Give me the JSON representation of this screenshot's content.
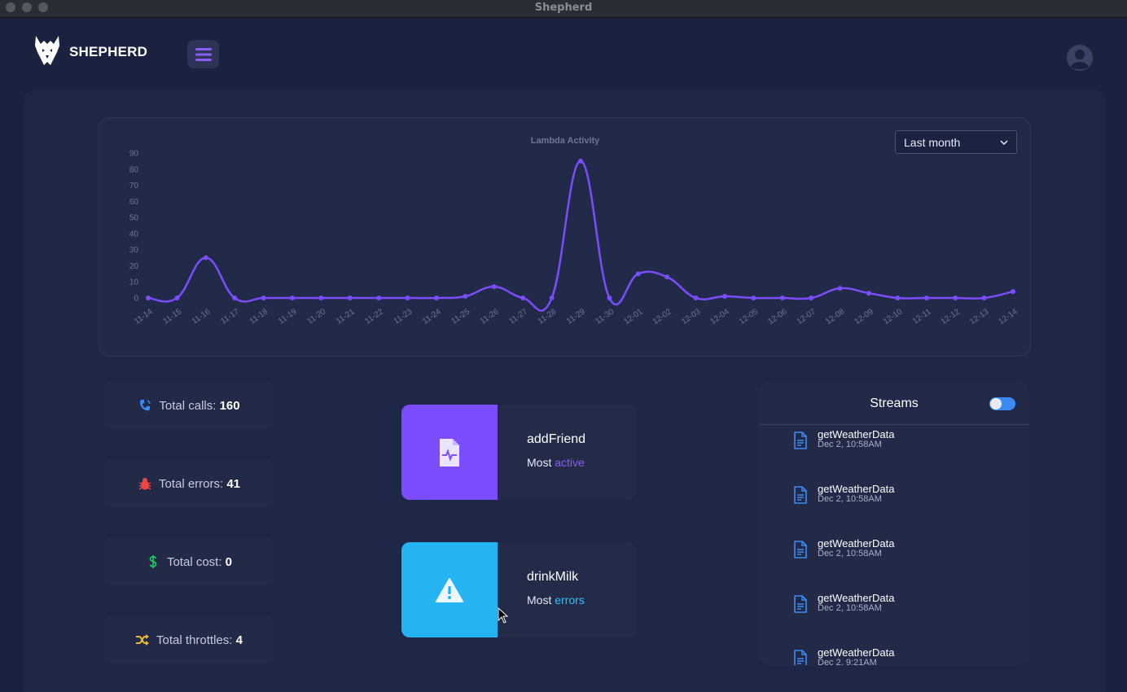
{
  "window": {
    "title": "Shepherd"
  },
  "header": {
    "brand": "SHEPHERD",
    "menu_icon": "hamburger-icon",
    "avatar_icon": "user-avatar-icon"
  },
  "chart_controls": {
    "range_selected": "Last month",
    "range_options": [
      "Last month"
    ]
  },
  "chart_data": {
    "type": "line",
    "title": "Lambda Activity",
    "xlabel": "",
    "ylabel": "",
    "ylim": [
      0,
      90
    ],
    "yticks": [
      0,
      10,
      20,
      30,
      40,
      50,
      60,
      70,
      80,
      90
    ],
    "grid": false,
    "color": "#7b4dff",
    "x": [
      "11-14",
      "11-15",
      "11-16",
      "11-17",
      "11-18",
      "11-19",
      "11-20",
      "11-21",
      "11-22",
      "11-23",
      "11-24",
      "11-25",
      "11-26",
      "11-27",
      "11-28",
      "11-29",
      "11-30",
      "12-01",
      "12-02",
      "12-03",
      "12-04",
      "12-05",
      "12-06",
      "12-07",
      "12-08",
      "12-09",
      "12-10",
      "12-11",
      "12-12",
      "12-13",
      "12-14"
    ],
    "series": [
      {
        "values": [
          0,
          0,
          25,
          0,
          0,
          0,
          0,
          0,
          0,
          0,
          0,
          1,
          7,
          0,
          0,
          85,
          0,
          15,
          13,
          0,
          1,
          0,
          0,
          0,
          6,
          3,
          0,
          0,
          0,
          0,
          4
        ]
      }
    ]
  },
  "stats": [
    {
      "label": "Total calls: ",
      "value": "160",
      "icon": "phone-icon",
      "color": "#3d8bf2"
    },
    {
      "label": "Total errors: ",
      "value": "41",
      "icon": "bug-icon",
      "color": "#ef4444"
    },
    {
      "label": "Total cost: ",
      "value": "0",
      "icon": "dollar-icon",
      "color": "#22c55e"
    },
    {
      "label": "Total throttles: ",
      "value": "4",
      "icon": "shuffle-icon",
      "color": "#f5b82e"
    }
  ],
  "function_cards": [
    {
      "name": "addFriend",
      "prefix": "Most ",
      "accent": "active",
      "icon": "file-pulse-icon",
      "color": "#7b4dff",
      "accent_color": "#8b5cf6"
    },
    {
      "name": "drinkMilk",
      "prefix": "Most ",
      "accent": "errors",
      "icon": "warning-icon",
      "color": "#26b3f2",
      "accent_color": "#38bdf8"
    }
  ],
  "streams": {
    "title": "Streams",
    "toggle_on": true,
    "items": [
      {
        "name": "getWeatherData",
        "date": "Dec 2, 10:58AM"
      },
      {
        "name": "getWeatherData",
        "date": "Dec 2, 10:58AM"
      },
      {
        "name": "getWeatherData",
        "date": "Dec 2, 10:58AM"
      },
      {
        "name": "getWeatherData",
        "date": "Dec 2, 10:58AM"
      },
      {
        "name": "getWeatherData",
        "date": "Dec 2, 9:21AM"
      }
    ]
  }
}
